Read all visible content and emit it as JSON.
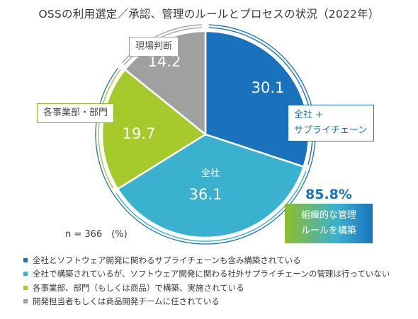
{
  "title": "OSSの利用選定／承認、管理のルールとプロセスの状況（2022年）",
  "chart_data": {
    "type": "pie",
    "slices": [
      {
        "key": "supply",
        "value": 30.1,
        "label_line1": "全社 +",
        "label_line2": "サプライチェーン",
        "color": "#1a72bd"
      },
      {
        "key": "company",
        "value": 36.1,
        "label": "全社",
        "color": "#39b1cf"
      },
      {
        "key": "division",
        "value": 19.7,
        "label": "各事業部・部門",
        "color": "#a6c92b"
      },
      {
        "key": "field",
        "value": 14.2,
        "label": "現場判断",
        "color": "#a0a0a0"
      }
    ],
    "total_org_pct": "85.8%",
    "org_box_line1": "組織的な管理",
    "org_box_line2": "ルールを構築",
    "note": "n = 366　(%)",
    "legend": [
      {
        "text": "全社とソフトウェア開発に関わるサプライチェーンも含み構築されている",
        "color": "#1a72bd"
      },
      {
        "text": "全社で構築されているが、ソフトウェア開発に関わる社外サプライチェーンの管理は行っていない",
        "color": "#39b1cf"
      },
      {
        "text": "各事業部、部門（もしくは商品）で構築、実施されている",
        "color": "#a6c92b"
      },
      {
        "text": "開発担当者もしくは商品開発チームに任されている",
        "color": "#a0a0a0"
      }
    ]
  }
}
